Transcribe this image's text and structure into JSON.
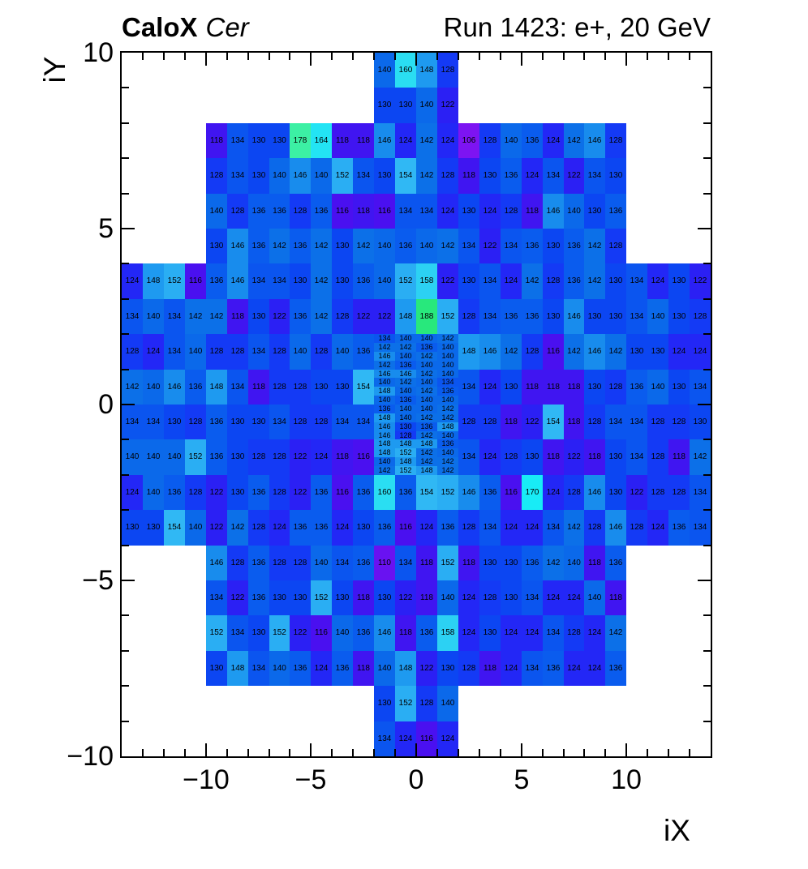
{
  "header": {
    "title_bold": "CaloX",
    "title_italic": "Cer",
    "title_right": "Run 1423: e+, 20 GeV"
  },
  "chart_data": {
    "type": "heatmap",
    "title": "CaloX Cer — Run 1423: e+, 20 GeV",
    "xlabel": "iX",
    "ylabel": "iY",
    "xlim": [
      -14,
      14
    ],
    "ylim": [
      -10,
      10
    ],
    "grid": false,
    "x_ticks": [
      {
        "v": -10,
        "label": "−10"
      },
      {
        "v": -5,
        "label": "−5"
      },
      {
        "v": 0,
        "label": "0"
      },
      {
        "v": 5,
        "label": "5"
      },
      {
        "v": 10,
        "label": "10"
      }
    ],
    "y_ticks": [
      {
        "v": 10,
        "label": "10"
      },
      {
        "v": 5,
        "label": "5"
      },
      {
        "v": 0,
        "label": "0"
      },
      {
        "v": -5,
        "label": "−5"
      },
      {
        "v": -10,
        "label": "−10"
      }
    ],
    "zmin": 106,
    "zmax": 188,
    "palette_stops": [
      [
        106,
        "#7d14f2"
      ],
      [
        116,
        "#4a10f0"
      ],
      [
        122,
        "#2b20f4"
      ],
      [
        126,
        "#1b2df8"
      ],
      [
        130,
        "#0c46f2"
      ],
      [
        136,
        "#0a5cee"
      ],
      [
        142,
        "#0c70e8"
      ],
      [
        148,
        "#1e9af0"
      ],
      [
        154,
        "#30b8f4"
      ],
      [
        160,
        "#2adef2"
      ],
      [
        170,
        "#18ecf6"
      ],
      [
        178,
        "#3cf0a4"
      ],
      [
        188,
        "#28e87c"
      ]
    ],
    "segments": [
      {
        "x": -2,
        "y": 10,
        "v": [
          140,
          160,
          148,
          128
        ]
      },
      {
        "x": -2,
        "y": 9,
        "v": [
          130,
          130,
          140,
          122
        ]
      },
      {
        "x": -10,
        "y": 8,
        "v": [
          118,
          134,
          130,
          130,
          178,
          164,
          118,
          118,
          146,
          124,
          142,
          124,
          106,
          128,
          140,
          136,
          124,
          142,
          146,
          128
        ]
      },
      {
        "x": -10,
        "y": 7,
        "v": [
          128,
          134,
          130,
          140,
          146,
          140,
          152,
          134,
          130,
          154,
          142,
          128,
          118,
          130,
          136,
          124,
          134,
          122,
          134,
          130
        ]
      },
      {
        "x": -10,
        "y": 6,
        "v": [
          140,
          128,
          136,
          136,
          128,
          136,
          116,
          118,
          116,
          134,
          134,
          124,
          130,
          124,
          128,
          118,
          146,
          140,
          130,
          136
        ]
      },
      {
        "x": -10,
        "y": 5,
        "v": [
          130,
          146,
          136,
          142,
          136,
          142,
          130,
          142,
          140,
          136,
          140,
          142,
          134,
          122,
          134,
          136,
          130,
          136,
          142,
          128
        ]
      },
      {
        "x": -14,
        "y": 4,
        "v": [
          124,
          148,
          152,
          116,
          136,
          146,
          134,
          134,
          130,
          142,
          130,
          136,
          140,
          152,
          158,
          122,
          130,
          134,
          124,
          142,
          128,
          136,
          142,
          130,
          134,
          124,
          130,
          122
        ]
      },
      {
        "x": -14,
        "y": 3,
        "v": [
          134,
          140,
          134,
          142,
          142,
          118,
          130,
          122,
          136,
          142,
          128,
          122,
          122,
          148,
          188,
          152,
          128,
          134,
          136,
          136,
          130,
          146,
          130,
          130,
          134,
          140,
          130,
          128
        ]
      },
      {
        "x": -14,
        "y": 2,
        "v": [
          128,
          124,
          134,
          140,
          128,
          128,
          134,
          128,
          140,
          128,
          140,
          136
        ]
      },
      {
        "x": 2,
        "y": 2,
        "v": [
          148,
          146,
          142,
          128,
          116,
          142,
          146,
          142,
          130,
          130,
          124,
          124
        ]
      },
      {
        "x": -14,
        "y": 1,
        "v": [
          142,
          140,
          146,
          136,
          148,
          134,
          118,
          128,
          128,
          130,
          130,
          154
        ]
      },
      {
        "x": 2,
        "y": 1,
        "v": [
          134,
          124,
          130,
          118,
          118,
          118,
          130,
          128,
          136,
          140,
          130,
          134
        ]
      },
      {
        "x": -14,
        "y": 0,
        "v": [
          134,
          134,
          130,
          128,
          136,
          130,
          130,
          134,
          128,
          128,
          134,
          134
        ]
      },
      {
        "x": 2,
        "y": 0,
        "v": [
          128,
          128,
          118,
          122,
          154,
          118,
          128,
          134,
          134,
          128,
          128,
          130
        ]
      },
      {
        "x": -14,
        "y": -1,
        "v": [
          140,
          140,
          140,
          152,
          136,
          130,
          128,
          128,
          122,
          124,
          118,
          116
        ]
      },
      {
        "x": 2,
        "y": -1,
        "v": [
          134,
          124,
          128,
          130,
          118,
          122,
          118,
          130,
          134,
          128,
          118,
          142
        ]
      },
      {
        "x": -14,
        "y": -2,
        "v": [
          124,
          140,
          136,
          128,
          122,
          130,
          136,
          128,
          122,
          136,
          116,
          136,
          160,
          136,
          154,
          152,
          146,
          136,
          116,
          170,
          124,
          128,
          146,
          130,
          122,
          128,
          128,
          134
        ]
      },
      {
        "x": -14,
        "y": -3,
        "v": [
          130,
          130,
          154,
          140,
          122,
          142,
          128,
          124,
          136,
          136,
          124,
          130,
          136,
          116,
          124,
          136,
          128,
          134,
          124,
          124,
          134,
          142,
          128,
          146,
          128,
          124,
          136,
          134
        ]
      },
      {
        "x": -10,
        "y": -4,
        "v": [
          146,
          128,
          136,
          128,
          128,
          140,
          134,
          136,
          110,
          134,
          118,
          152,
          118,
          130,
          130,
          136,
          142,
          140,
          118,
          136
        ]
      },
      {
        "x": -10,
        "y": -5,
        "v": [
          134,
          122,
          136,
          130,
          130,
          152,
          130,
          118,
          130,
          122,
          118,
          140,
          124,
          128,
          130,
          134,
          124,
          124,
          140,
          118
        ]
      },
      {
        "x": -10,
        "y": -6,
        "v": [
          152,
          134,
          130,
          152,
          122,
          116,
          140,
          136,
          146,
          118,
          136,
          158,
          124,
          130,
          124,
          124,
          134,
          128,
          124,
          142
        ]
      },
      {
        "x": -10,
        "y": -7,
        "v": [
          130,
          148,
          134,
          140,
          136,
          124,
          136,
          118,
          140,
          148,
          122,
          130,
          128,
          118,
          124,
          134,
          136,
          124,
          124,
          136
        ]
      },
      {
        "x": -2,
        "y": -8,
        "v": [
          130,
          152,
          128,
          140
        ]
      },
      {
        "x": -2,
        "y": -9,
        "v": [
          134,
          124,
          116,
          124
        ]
      }
    ],
    "fine_block": {
      "x": -2,
      "y_top": 2,
      "col_w": 1,
      "row_h": 0.25,
      "rows": [
        [
          134,
          140,
          140,
          142
        ],
        [
          142,
          142,
          136,
          140
        ],
        [
          146,
          140,
          142,
          140
        ],
        [
          142,
          136,
          140,
          140
        ],
        [
          146,
          146,
          142,
          140
        ],
        [
          140,
          142,
          140,
          134
        ],
        [
          148,
          140,
          142,
          136
        ],
        [
          140,
          136,
          140,
          140
        ],
        [
          136,
          140,
          140,
          142
        ],
        [
          148,
          140,
          142,
          142
        ],
        [
          146,
          130,
          136,
          148
        ],
        [
          146,
          128,
          142,
          140
        ],
        [
          148,
          148,
          148,
          136
        ],
        [
          148,
          152,
          142,
          140
        ],
        [
          140,
          148,
          142,
          142
        ],
        [
          142,
          152,
          148,
          142
        ]
      ]
    }
  }
}
